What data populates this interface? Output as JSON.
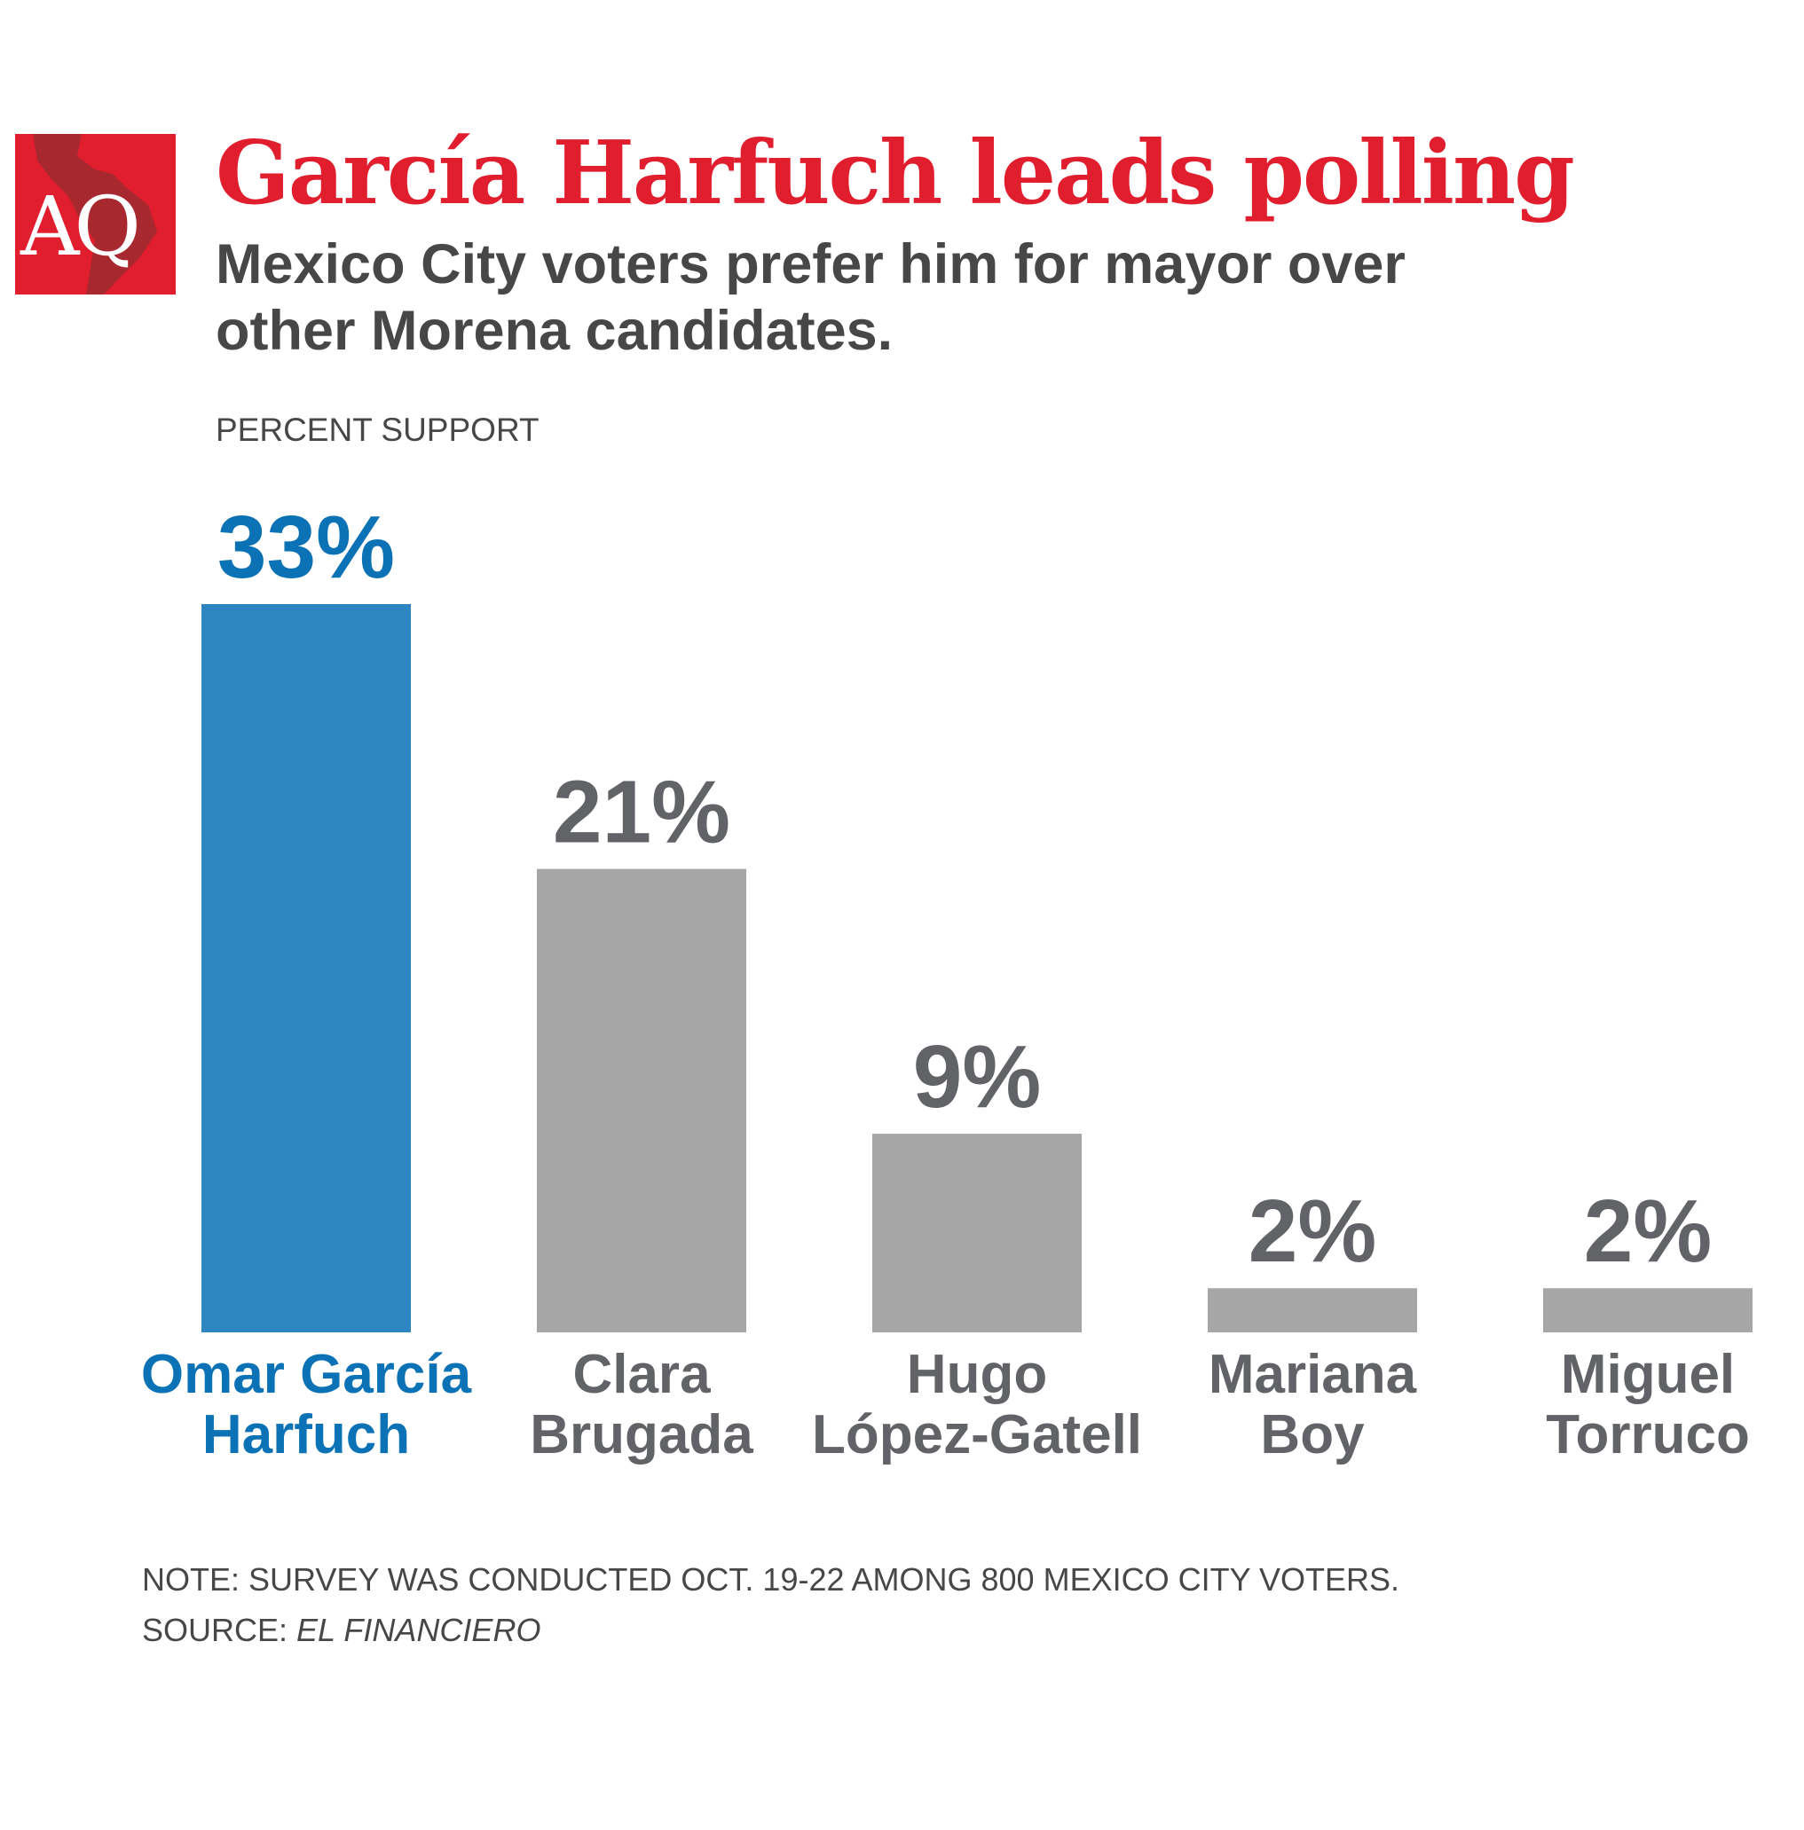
{
  "logo": {
    "text": "AQ",
    "color": "#e01e2d"
  },
  "title": "García Harfuch leads polling",
  "subtitle": [
    "Mexico City voters prefer him for mayor over",
    "other Morena candidates."
  ],
  "note": "NOTE: SURVEY WAS CONDUCTED OCT. 19-22 AMONG 800 MEXICO CITY VOTERS.",
  "source_label": "SOURCE:",
  "source_name": "EL FINANCIERO",
  "colors": {
    "title": "#e01e2d",
    "highlight_bar": "#2e86c1",
    "highlight_text": "#0b72b5",
    "bar": "#a6a6a6",
    "label_text": "#626366"
  },
  "chart_data": {
    "type": "bar",
    "ylabel": "PERCENT SUPPORT",
    "categories": [
      [
        "Omar García",
        "Harfuch"
      ],
      [
        "Clara",
        "Brugada"
      ],
      [
        "Hugo",
        "López-Gatell"
      ],
      [
        "Mariana",
        "Boy"
      ],
      [
        "Miguel",
        "Torruco"
      ]
    ],
    "values": [
      33,
      21,
      9,
      2,
      2
    ],
    "data_labels": [
      "33%",
      "21%",
      "9%",
      "2%",
      "2%"
    ],
    "highlight_index": 0,
    "ylim": [
      0,
      33
    ],
    "grid": false
  }
}
